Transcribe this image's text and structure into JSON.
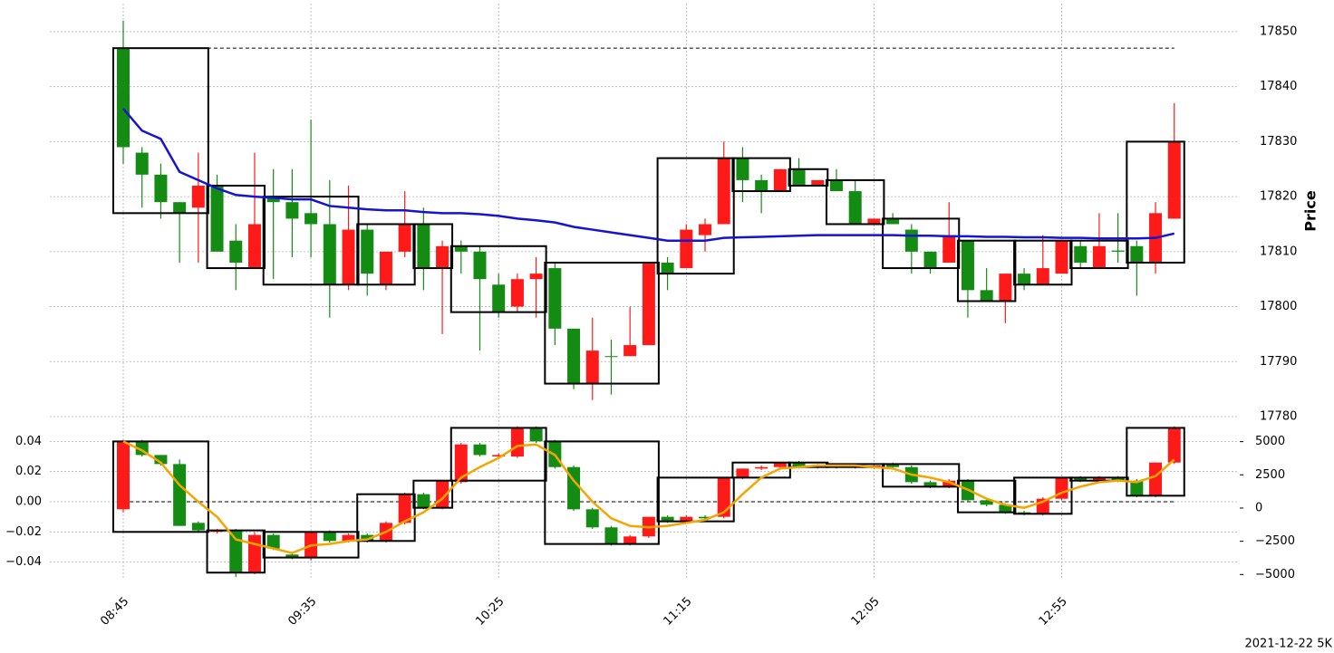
{
  "chart_data": [
    {
      "type": "candlestick",
      "y_label": "Price",
      "ylim": [
        17780,
        17855
      ],
      "yticks": [
        17780,
        17790,
        17800,
        17810,
        17820,
        17830,
        17840,
        17850
      ],
      "grid": true,
      "up_color": "#ff1a1a",
      "down_color": "#148c14",
      "box_color": "#000000",
      "open": [
        17847,
        17828,
        17824,
        17819,
        17818,
        17822,
        17812,
        17807,
        17820,
        17819,
        17817,
        17815,
        17804,
        17814,
        17804,
        17810,
        17815,
        17807,
        17811,
        17810,
        17804,
        17800,
        17805,
        17807,
        17796,
        17786,
        17791,
        17791,
        17793,
        17808,
        17807,
        17813,
        17815,
        17827,
        17823,
        17821,
        17825,
        17822,
        17823,
        17821,
        17815,
        17816,
        17814,
        17810,
        17808,
        17812,
        17803,
        17801,
        17806,
        17804,
        17806,
        17811,
        17807,
        17810.2,
        17811,
        17808,
        17816
      ],
      "high": [
        17852,
        17829,
        17826,
        17819,
        17828,
        17824,
        17815,
        17828,
        17825,
        17825,
        17834,
        17823,
        17822,
        17815,
        17810,
        17821,
        17818,
        17812,
        17812,
        17811,
        17806,
        17806,
        17809,
        17808,
        17796,
        17798,
        17794,
        17800,
        17808,
        17809,
        17815,
        17816,
        17830,
        17829,
        17824,
        17825,
        17827,
        17823,
        17825,
        17823,
        17816,
        17817,
        17815,
        17810,
        17819,
        17812,
        17807,
        17806,
        17807,
        17813,
        17812,
        17812,
        17817,
        17817,
        17812,
        17819,
        17837
      ],
      "low": [
        17826,
        17818,
        17816,
        17808,
        17808,
        17810,
        17803,
        17807,
        17805,
        17809,
        17809,
        17798,
        17803,
        17802,
        17803,
        17809,
        17803,
        17795,
        17806,
        17792,
        17798,
        17799,
        17798,
        17793,
        17785,
        17783,
        17784,
        17791,
        17793,
        17803,
        17807,
        17810,
        17815,
        17819,
        17817,
        17821,
        17822,
        17822,
        17821,
        17815,
        17815,
        17815,
        17806,
        17806,
        17808,
        17798,
        17801,
        17797,
        17803,
        17804,
        17806,
        17807,
        17807,
        17808,
        17802,
        17806,
        17816
      ],
      "close": [
        17829,
        17824,
        17819,
        17817,
        17822,
        17810,
        17808,
        17815,
        17819,
        17816,
        17815,
        17804,
        17814,
        17806,
        17810,
        17815,
        17807,
        17811,
        17810,
        17805,
        17799,
        17805,
        17806,
        17796,
        17786,
        17792,
        17791,
        17793,
        17808,
        17806,
        17814,
        17815,
        17827,
        17823,
        17821,
        17825,
        17822,
        17823,
        17821,
        17815,
        17816,
        17815,
        17810,
        17807,
        17813,
        17803,
        17801,
        17806,
        17804,
        17807,
        17812,
        17808,
        17811,
        17810,
        17808,
        17817,
        17830
      ],
      "series": [
        {
          "color": "#1414d2",
          "values": [
            17836,
            17832,
            17830.5,
            17824.5,
            17823,
            17821.5,
            17820.3,
            17820,
            17819.8,
            17819.5,
            17819.5,
            17818.3,
            17818,
            17817.7,
            17817.5,
            17817.5,
            17817.2,
            17817,
            17817,
            17816.8,
            17816.5,
            17816,
            17815.7,
            17815.3,
            17814.5,
            17814,
            17813.5,
            17813,
            17812.5,
            17812,
            17812,
            17812,
            17812.5,
            17812.6,
            17812.7,
            17812.8,
            17812.9,
            17813,
            17813,
            17813,
            17813,
            17813,
            17812.9,
            17812.9,
            17812.8,
            17812.8,
            17812.7,
            17812.7,
            17812.6,
            17812.6,
            17812.5,
            17812.5,
            17812.4,
            17812.4,
            17812.4,
            17812.5,
            17813.3
          ]
        }
      ],
      "reference_line": 17847,
      "boxes": [
        {
          "from": 0,
          "to": 4,
          "top": 17847,
          "bottom": 17817
        },
        {
          "from": 5,
          "to": 7,
          "top": 17822,
          "bottom": 17807
        },
        {
          "from": 8,
          "to": 12,
          "top": 17820,
          "bottom": 17804
        },
        {
          "from": 13,
          "to": 15,
          "top": 17815,
          "bottom": 17804
        },
        {
          "from": 16,
          "to": 17,
          "top": 17815,
          "bottom": 17807
        },
        {
          "from": 18,
          "to": 22,
          "top": 17811,
          "bottom": 17799
        },
        {
          "from": 23,
          "to": 28,
          "top": 17808,
          "bottom": 17786
        },
        {
          "from": 29,
          "to": 32,
          "top": 17827,
          "bottom": 17806
        },
        {
          "from": 33,
          "to": 35,
          "top": 17827,
          "bottom": 17821
        },
        {
          "from": 36,
          "to": 37,
          "top": 17825,
          "bottom": 17822
        },
        {
          "from": 38,
          "to": 40,
          "top": 17823,
          "bottom": 17815
        },
        {
          "from": 41,
          "to": 44,
          "top": 17816,
          "bottom": 17807
        },
        {
          "from": 45,
          "to": 47,
          "top": 17812,
          "bottom": 17801
        },
        {
          "from": 48,
          "to": 50,
          "top": 17812,
          "bottom": 17804
        },
        {
          "from": 51,
          "to": 53,
          "top": 17812,
          "bottom": 17807
        },
        {
          "from": 54,
          "to": 56,
          "top": 17830,
          "bottom": 17808
        }
      ]
    },
    {
      "type": "candlestick",
      "annotation": "2021-12-22 5K",
      "categories": [
        "08:45",
        null,
        null,
        null,
        null,
        null,
        null,
        null,
        null,
        null,
        "09:35",
        null,
        null,
        null,
        null,
        null,
        null,
        null,
        null,
        null,
        "10:25",
        null,
        null,
        null,
        null,
        null,
        null,
        null,
        null,
        null,
        "11:15",
        null,
        null,
        null,
        null,
        null,
        null,
        null,
        null,
        null,
        "12:05",
        null,
        null,
        null,
        null,
        null,
        null,
        null,
        null,
        null,
        "12:55",
        null,
        null,
        null,
        null,
        null,
        null
      ],
      "ylim": [
        -0.05,
        0.05
      ],
      "yticks": [
        {
          "value": -0.04,
          "label": "−0.04"
        },
        {
          "value": -0.02,
          "label": "−0.02"
        },
        {
          "value": 0,
          "label": "0.00"
        },
        0.02,
        0.04
      ],
      "y2lim": [
        -5200,
        6150
      ],
      "y2ticks": [
        {
          "value": -5000,
          "label": "−5000"
        },
        {
          "value": -2500,
          "label": "−2500"
        },
        0,
        2500,
        5000
      ],
      "grid": true,
      "up_color": "#ff1a1a",
      "down_color": "#148c14",
      "box_color": "#000000",
      "open": [
        -0.005,
        0.04,
        0.031,
        0.025,
        -0.014,
        -0.02,
        -0.019,
        -0.047,
        -0.022,
        -0.035,
        -0.037,
        -0.02,
        -0.026,
        -0.022,
        -0.026,
        -0.014,
        0.005,
        -0.004,
        0.013,
        0.038,
        0.03,
        0.03,
        0.049,
        0.04,
        0.023,
        -0.005,
        -0.017,
        -0.028,
        -0.023,
        -0.01,
        -0.013,
        -0.01,
        -0.01,
        0.016,
        0.022,
        0.023,
        0.026,
        0.023,
        0.024,
        0.024,
        0.023,
        0.025,
        0.023,
        0.013,
        0.01,
        0.014,
        0.001,
        -0.002,
        -0.007,
        -0.008,
        0.002,
        0.016,
        0.014,
        0.016,
        0.014,
        0.004,
        0.026
      ],
      "high": [
        0.041,
        0.041,
        0.031,
        0.028,
        -0.013,
        -0.018,
        -0.018,
        -0.02,
        -0.021,
        -0.034,
        -0.02,
        -0.019,
        -0.021,
        -0.021,
        -0.013,
        0.006,
        0.006,
        0.014,
        0.039,
        0.039,
        0.032,
        0.05,
        0.05,
        0.041,
        0.024,
        -0.004,
        -0.016,
        -0.022,
        -0.01,
        -0.009,
        -0.009,
        -0.009,
        0.016,
        0.022,
        0.024,
        0.026,
        0.027,
        0.025,
        0.025,
        0.025,
        0.025,
        0.026,
        0.024,
        0.014,
        0.015,
        0.015,
        0.002,
        -0.001,
        -0.006,
        0.003,
        0.016,
        0.017,
        0.017,
        0.017,
        0.015,
        0.026,
        0.05
      ],
      "low": [
        -0.007,
        0.03,
        0.024,
        -0.016,
        -0.02,
        -0.021,
        -0.05,
        -0.048,
        -0.032,
        -0.038,
        -0.039,
        -0.027,
        -0.027,
        -0.027,
        -0.027,
        -0.015,
        -0.005,
        -0.005,
        0.012,
        0.03,
        0.029,
        0.029,
        0.039,
        0.022,
        -0.006,
        -0.018,
        -0.029,
        -0.029,
        -0.024,
        -0.014,
        -0.014,
        -0.012,
        -0.011,
        0.015,
        0.021,
        0.022,
        0.022,
        0.022,
        0.022,
        0.022,
        0.022,
        0.022,
        0.012,
        0.009,
        0.009,
        0.0,
        -0.003,
        -0.008,
        -0.009,
        -0.009,
        0.001,
        0.013,
        0.013,
        0.013,
        0.003,
        0.003,
        0.025
      ],
      "close": [
        0.04,
        0.031,
        0.025,
        -0.016,
        -0.019,
        -0.019,
        -0.047,
        -0.022,
        -0.031,
        -0.037,
        -0.02,
        -0.026,
        -0.022,
        -0.026,
        -0.014,
        0.005,
        -0.004,
        0.014,
        0.038,
        0.031,
        0.031,
        0.049,
        0.04,
        0.023,
        -0.005,
        -0.017,
        -0.028,
        -0.023,
        -0.01,
        -0.013,
        -0.01,
        -0.011,
        0.016,
        0.022,
        0.023,
        0.026,
        0.023,
        0.024,
        0.023,
        0.023,
        0.024,
        0.023,
        0.013,
        0.01,
        0.014,
        0.001,
        -0.002,
        -0.007,
        -0.008,
        0.002,
        0.016,
        0.014,
        0.016,
        0.014,
        0.004,
        0.026,
        0.049
      ],
      "series": [
        {
          "color": "#f5a500",
          "values": [
            0.04,
            0.034,
            0.026,
            0.011,
            0.0,
            -0.01,
            -0.025,
            -0.028,
            -0.031,
            -0.034,
            -0.029,
            -0.028,
            -0.026,
            -0.025,
            -0.02,
            -0.013,
            -0.007,
            0.002,
            0.016,
            0.023,
            0.029,
            0.037,
            0.038,
            0.031,
            0.014,
            0.0,
            -0.011,
            -0.016,
            -0.017,
            -0.016,
            -0.014,
            -0.012,
            -0.007,
            0.005,
            0.016,
            0.022,
            0.023,
            0.024,
            0.024,
            0.024,
            0.023,
            0.022,
            0.018,
            0.016,
            0.013,
            0.008,
            0.002,
            -0.002,
            -0.004,
            0.0,
            0.006,
            0.01,
            0.013,
            0.014,
            0.013,
            0.017,
            0.028
          ]
        }
      ],
      "reference_line": 0,
      "boxes": [
        {
          "from": 0,
          "to": 4,
          "top": 0.04,
          "bottom": -0.02
        },
        {
          "from": 5,
          "to": 7,
          "top": -0.019,
          "bottom": -0.047
        },
        {
          "from": 8,
          "to": 12,
          "top": -0.02,
          "bottom": -0.037
        },
        {
          "from": 13,
          "to": 15,
          "top": 0.005,
          "bottom": -0.026
        },
        {
          "from": 16,
          "to": 17,
          "top": 0.014,
          "bottom": -0.004
        },
        {
          "from": 18,
          "to": 22,
          "top": 0.049,
          "bottom": 0.014
        },
        {
          "from": 23,
          "to": 28,
          "top": 0.04,
          "bottom": -0.028
        },
        {
          "from": 29,
          "to": 32,
          "top": 0.016,
          "bottom": -0.013
        },
        {
          "from": 33,
          "to": 35,
          "top": 0.026,
          "bottom": 0.016
        },
        {
          "from": 36,
          "to": 37,
          "top": 0.026,
          "bottom": 0.023
        },
        {
          "from": 38,
          "to": 40,
          "top": 0.025,
          "bottom": 0.023
        },
        {
          "from": 41,
          "to": 44,
          "top": 0.025,
          "bottom": 0.01
        },
        {
          "from": 45,
          "to": 47,
          "top": 0.014,
          "bottom": -0.007
        },
        {
          "from": 48,
          "to": 50,
          "top": 0.016,
          "bottom": -0.008
        },
        {
          "from": 51,
          "to": 53,
          "top": 0.016,
          "bottom": 0.014
        },
        {
          "from": 54,
          "to": 56,
          "top": 0.049,
          "bottom": 0.004
        }
      ]
    }
  ]
}
